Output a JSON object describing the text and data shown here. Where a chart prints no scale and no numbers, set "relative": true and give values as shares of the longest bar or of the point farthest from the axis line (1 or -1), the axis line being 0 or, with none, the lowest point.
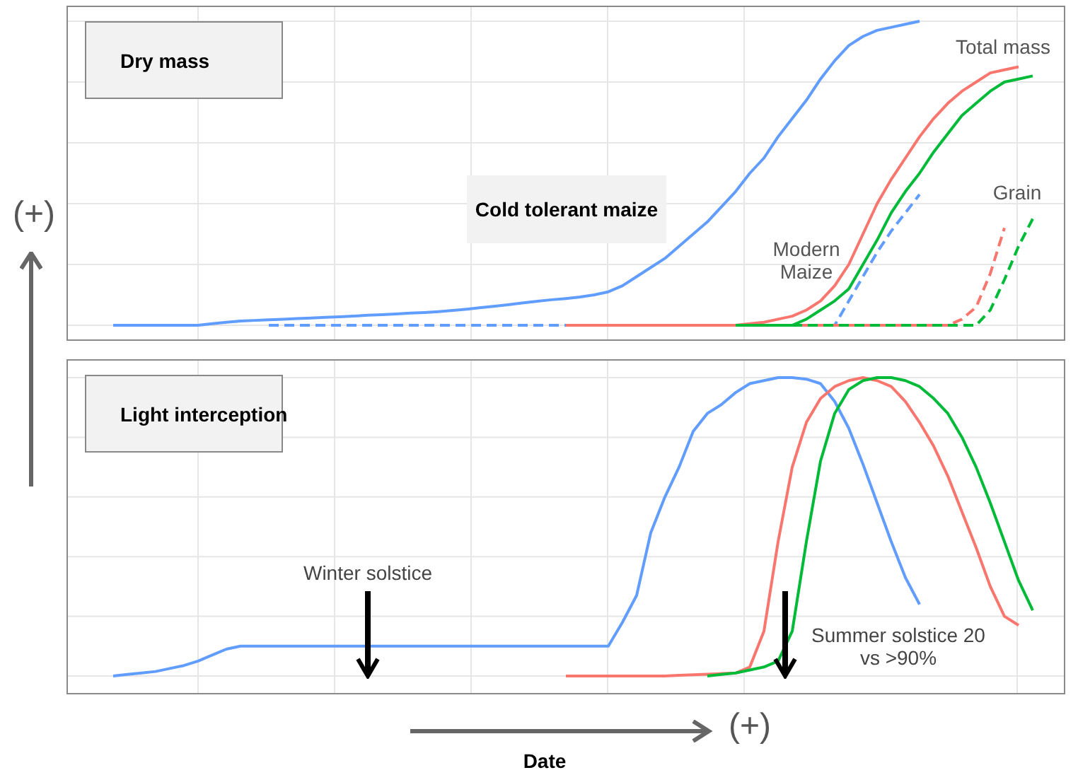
{
  "chart_data": [
    {
      "type": "line",
      "title": "Dry mass",
      "ylabel": "(+)",
      "relative": true,
      "grid": true,
      "categories": [
        null,
        null,
        null,
        null,
        null,
        null,
        null,
        null,
        null,
        null,
        null,
        null,
        null,
        null,
        null,
        null,
        null,
        null,
        null,
        null,
        null,
        null,
        null,
        null,
        null,
        null,
        null,
        null,
        null,
        null,
        null,
        null,
        null,
        null,
        null,
        null,
        null,
        null,
        null,
        null,
        null,
        null,
        null,
        null,
        null,
        null,
        null,
        null,
        null,
        null,
        null,
        null,
        null,
        null,
        null,
        null,
        null,
        null,
        null,
        null,
        null,
        null,
        null,
        null,
        null,
        null,
        null
      ],
      "annotations": [
        "Cold tolerant maize",
        "Modern Maize",
        "Total mass",
        "Grain"
      ],
      "series": [
        {
          "color": "#619cff",
          "line_style": "dashed",
          "values": [
            null,
            null,
            null,
            null,
            null,
            null,
            null,
            null,
            null,
            null,
            null,
            0,
            0,
            0,
            0,
            0,
            0,
            0,
            0,
            0,
            0,
            0,
            0,
            0,
            0,
            0,
            0,
            0,
            0,
            0,
            0,
            0,
            0,
            0,
            0,
            0,
            0,
            0,
            0,
            0,
            0,
            0,
            0,
            0,
            0,
            0,
            0,
            0,
            0,
            0,
            0,
            0,
            0.08,
            0.16,
            0.24,
            0.31,
            0.37,
            0.43,
            null,
            null,
            null,
            null,
            null,
            null,
            null,
            null,
            null
          ]
        },
        {
          "color": "#f8766d",
          "line_style": "dashed",
          "values": [
            null,
            null,
            null,
            null,
            null,
            null,
            null,
            null,
            null,
            null,
            null,
            null,
            null,
            null,
            null,
            null,
            null,
            null,
            null,
            null,
            null,
            null,
            null,
            null,
            null,
            null,
            null,
            null,
            null,
            null,
            null,
            null,
            null,
            null,
            null,
            null,
            null,
            null,
            null,
            null,
            null,
            null,
            null,
            null,
            0,
            0,
            0,
            0,
            0,
            0,
            0,
            0,
            0,
            0,
            0,
            0,
            0,
            0,
            0,
            0,
            0.02,
            0.06,
            0.17,
            0.32,
            null,
            null,
            null
          ]
        },
        {
          "color": "#00ba38",
          "line_style": "dashed",
          "values": [
            null,
            null,
            null,
            null,
            null,
            null,
            null,
            null,
            null,
            null,
            null,
            null,
            null,
            null,
            null,
            null,
            null,
            null,
            null,
            null,
            null,
            null,
            null,
            null,
            null,
            null,
            null,
            null,
            null,
            null,
            null,
            null,
            null,
            null,
            null,
            null,
            null,
            null,
            null,
            null,
            null,
            null,
            null,
            null,
            null,
            null,
            null,
            null,
            0,
            0,
            0,
            0,
            0,
            0,
            0,
            0,
            0,
            0,
            0,
            0,
            0,
            0,
            0.05,
            0.15,
            0.26,
            0.35,
            null
          ]
        },
        {
          "color": "#619cff",
          "line_style": "solid",
          "values": [
            0,
            0,
            0,
            0,
            0,
            0,
            0,
            0.005,
            0.01,
            0.014,
            0.016,
            0.018,
            0.02,
            0.022,
            0.024,
            0.026,
            0.028,
            0.03,
            0.033,
            0.035,
            0.037,
            0.04,
            0.042,
            0.045,
            0.049,
            0.053,
            0.058,
            0.063,
            0.068,
            0.074,
            0.079,
            0.084,
            0.088,
            0.093,
            0.1,
            0.11,
            0.13,
            0.16,
            0.19,
            0.22,
            0.26,
            0.3,
            0.34,
            0.39,
            0.44,
            0.5,
            0.55,
            0.62,
            0.68,
            0.74,
            0.81,
            0.87,
            0.92,
            0.95,
            0.97,
            0.98,
            0.99,
            1,
            null,
            null,
            null,
            null,
            null,
            null,
            null,
            null,
            null
          ]
        },
        {
          "color": "#f8766d",
          "line_style": "solid",
          "values": [
            null,
            null,
            null,
            null,
            null,
            null,
            null,
            null,
            null,
            null,
            null,
            null,
            null,
            null,
            null,
            null,
            null,
            null,
            null,
            null,
            null,
            null,
            null,
            null,
            null,
            null,
            null,
            null,
            null,
            null,
            null,
            null,
            0,
            0,
            0,
            0,
            0,
            0,
            0,
            0,
            0,
            0,
            0,
            0,
            0,
            0.005,
            0.01,
            0.02,
            0.03,
            0.05,
            0.08,
            0.13,
            0.2,
            0.3,
            0.4,
            0.48,
            0.55,
            0.62,
            0.68,
            0.73,
            0.77,
            0.8,
            0.83,
            0.84,
            0.85,
            null,
            null
          ]
        },
        {
          "color": "#00ba38",
          "line_style": "solid",
          "values": [
            null,
            null,
            null,
            null,
            null,
            null,
            null,
            null,
            null,
            null,
            null,
            null,
            null,
            null,
            null,
            null,
            null,
            null,
            null,
            null,
            null,
            null,
            null,
            null,
            null,
            null,
            null,
            null,
            null,
            null,
            null,
            null,
            null,
            null,
            null,
            null,
            null,
            null,
            null,
            null,
            null,
            null,
            null,
            null,
            0,
            0,
            0,
            0,
            0,
            0.02,
            0.05,
            0.08,
            0.12,
            0.2,
            0.28,
            0.37,
            0.44,
            0.5,
            0.57,
            0.63,
            0.69,
            0.73,
            0.77,
            0.8,
            0.81,
            0.82,
            null
          ]
        }
      ]
    },
    {
      "type": "line",
      "title": "Light interception",
      "xlabel": "Date",
      "relative": true,
      "grid": true,
      "categories": [
        null,
        null,
        null,
        null,
        null,
        null,
        null,
        null,
        null,
        null,
        null,
        null,
        null,
        null,
        null,
        null,
        null,
        null,
        null,
        null,
        null,
        null,
        null,
        null,
        null,
        null,
        null,
        null,
        null,
        null,
        null,
        null,
        null,
        null,
        null,
        null,
        null,
        null,
        null,
        null,
        null,
        null,
        null,
        null,
        null,
        null,
        null,
        null,
        null,
        null,
        null,
        null,
        null,
        null,
        null,
        null,
        null,
        null,
        null,
        null,
        null,
        null,
        null,
        null,
        null,
        null,
        null
      ],
      "annotations": [
        "Winter solstice",
        "Summer solstice 20 vs >90%",
        "(+)"
      ],
      "series": [
        {
          "color": "#619cff",
          "line_style": "solid",
          "values": [
            0,
            0.005,
            0.01,
            0.015,
            0.025,
            0.035,
            0.05,
            0.07,
            0.09,
            0.1,
            0.1,
            0.1,
            0.1,
            0.1,
            0.1,
            0.1,
            0.1,
            0.1,
            0.1,
            0.1,
            0.1,
            0.1,
            0.1,
            0.1,
            0.1,
            0.1,
            0.1,
            0.1,
            0.1,
            0.1,
            0.1,
            0.1,
            0.1,
            0.1,
            0.1,
            0.1,
            0.18,
            0.27,
            0.48,
            0.6,
            0.7,
            0.82,
            0.88,
            0.91,
            0.95,
            0.98,
            0.99,
            1,
            1,
            0.995,
            0.98,
            0.92,
            0.83,
            0.71,
            0.58,
            0.45,
            0.33,
            0.24,
            null,
            null,
            null,
            null,
            null,
            null,
            null,
            null,
            null
          ]
        },
        {
          "color": "#f8766d",
          "line_style": "solid",
          "values": [
            null,
            null,
            null,
            null,
            null,
            null,
            null,
            null,
            null,
            null,
            null,
            null,
            null,
            null,
            null,
            null,
            null,
            null,
            null,
            null,
            null,
            null,
            null,
            null,
            null,
            null,
            null,
            null,
            null,
            null,
            null,
            null,
            0,
            0,
            0,
            0,
            0,
            0,
            0,
            0,
            0.002,
            0.004,
            0.006,
            0.008,
            0.01,
            0.03,
            0.15,
            0.45,
            0.7,
            0.85,
            0.93,
            0.97,
            0.99,
            1,
            0.99,
            0.97,
            0.92,
            0.85,
            0.77,
            0.67,
            0.55,
            0.43,
            0.3,
            0.2,
            0.17,
            null,
            null
          ]
        },
        {
          "color": "#00ba38",
          "line_style": "solid",
          "values": [
            null,
            null,
            null,
            null,
            null,
            null,
            null,
            null,
            null,
            null,
            null,
            null,
            null,
            null,
            null,
            null,
            null,
            null,
            null,
            null,
            null,
            null,
            null,
            null,
            null,
            null,
            null,
            null,
            null,
            null,
            null,
            null,
            null,
            null,
            null,
            null,
            null,
            null,
            null,
            null,
            null,
            null,
            0,
            0.005,
            0.01,
            0.02,
            0.03,
            0.05,
            0.15,
            0.45,
            0.72,
            0.88,
            0.96,
            0.99,
            1,
            1,
            0.99,
            0.97,
            0.93,
            0.88,
            0.8,
            0.7,
            0.58,
            0.45,
            0.32,
            0.22,
            null
          ]
        }
      ]
    }
  ]
}
